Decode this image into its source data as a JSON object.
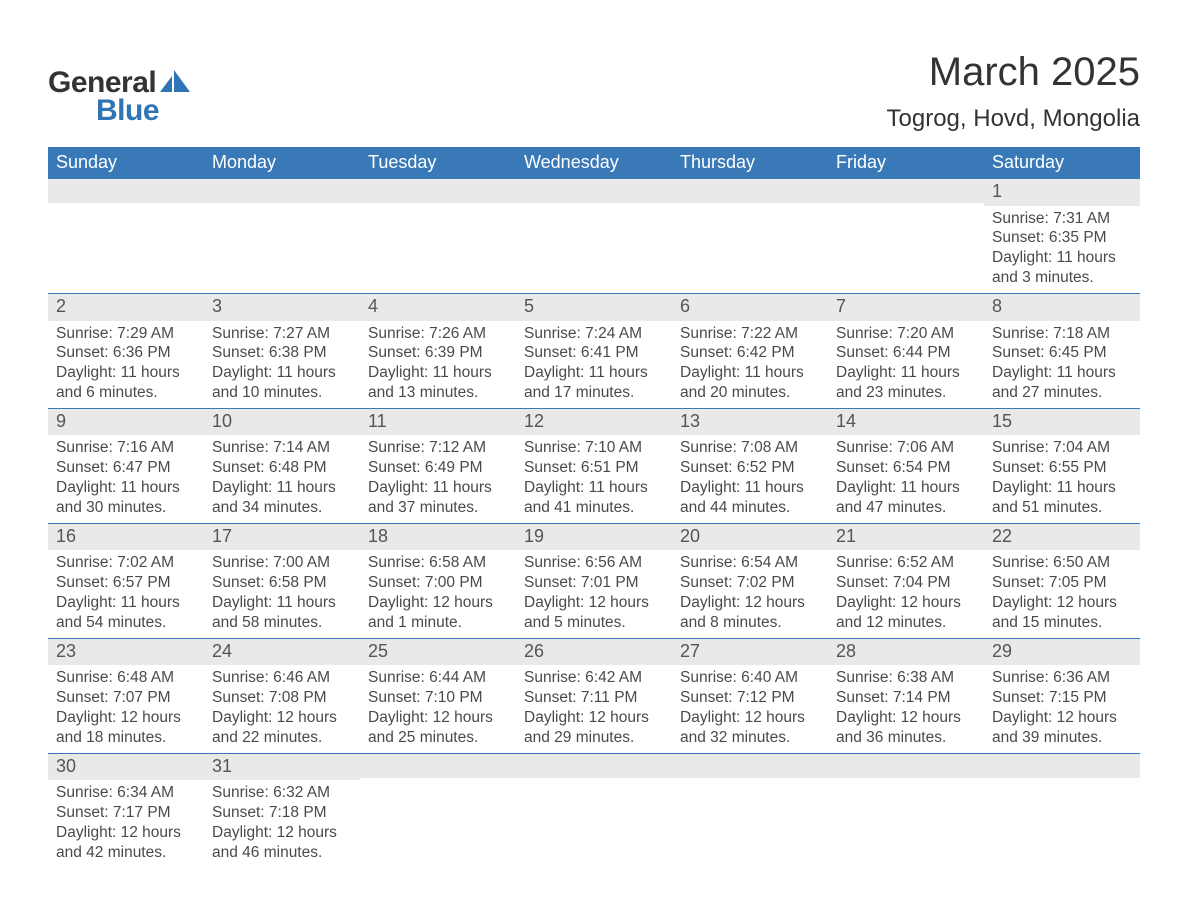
{
  "logo": {
    "text_general": "General",
    "text_blue": "Blue",
    "icon_fill": "#2f74b5"
  },
  "title": {
    "month": "March 2025",
    "location": "Togrog, Hovd, Mongolia"
  },
  "colors": {
    "header_bg": "#3a79b7",
    "header_text": "#ffffff",
    "daynum_bg": "#e9e9e9",
    "daynum_text": "#555555",
    "body_text": "#4a4a4a",
    "row_border": "#3a79b7",
    "page_bg": "#ffffff"
  },
  "typography": {
    "month_title_fontsize": 40,
    "location_fontsize": 24,
    "weekday_fontsize": 18,
    "daynum_fontsize": 18,
    "body_fontsize": 15.5,
    "logo_fontsize": 30,
    "font_family": "Arial"
  },
  "calendar": {
    "type": "table",
    "weekdays": [
      "Sunday",
      "Monday",
      "Tuesday",
      "Wednesday",
      "Thursday",
      "Friday",
      "Saturday"
    ],
    "weeks": [
      [
        {
          "day": "",
          "sunrise": "",
          "sunset": "",
          "daylight": ""
        },
        {
          "day": "",
          "sunrise": "",
          "sunset": "",
          "daylight": ""
        },
        {
          "day": "",
          "sunrise": "",
          "sunset": "",
          "daylight": ""
        },
        {
          "day": "",
          "sunrise": "",
          "sunset": "",
          "daylight": ""
        },
        {
          "day": "",
          "sunrise": "",
          "sunset": "",
          "daylight": ""
        },
        {
          "day": "",
          "sunrise": "",
          "sunset": "",
          "daylight": ""
        },
        {
          "day": "1",
          "sunrise": "Sunrise: 7:31 AM",
          "sunset": "Sunset: 6:35 PM",
          "daylight": "Daylight: 11 hours and 3 minutes."
        }
      ],
      [
        {
          "day": "2",
          "sunrise": "Sunrise: 7:29 AM",
          "sunset": "Sunset: 6:36 PM",
          "daylight": "Daylight: 11 hours and 6 minutes."
        },
        {
          "day": "3",
          "sunrise": "Sunrise: 7:27 AM",
          "sunset": "Sunset: 6:38 PM",
          "daylight": "Daylight: 11 hours and 10 minutes."
        },
        {
          "day": "4",
          "sunrise": "Sunrise: 7:26 AM",
          "sunset": "Sunset: 6:39 PM",
          "daylight": "Daylight: 11 hours and 13 minutes."
        },
        {
          "day": "5",
          "sunrise": "Sunrise: 7:24 AM",
          "sunset": "Sunset: 6:41 PM",
          "daylight": "Daylight: 11 hours and 17 minutes."
        },
        {
          "day": "6",
          "sunrise": "Sunrise: 7:22 AM",
          "sunset": "Sunset: 6:42 PM",
          "daylight": "Daylight: 11 hours and 20 minutes."
        },
        {
          "day": "7",
          "sunrise": "Sunrise: 7:20 AM",
          "sunset": "Sunset: 6:44 PM",
          "daylight": "Daylight: 11 hours and 23 minutes."
        },
        {
          "day": "8",
          "sunrise": "Sunrise: 7:18 AM",
          "sunset": "Sunset: 6:45 PM",
          "daylight": "Daylight: 11 hours and 27 minutes."
        }
      ],
      [
        {
          "day": "9",
          "sunrise": "Sunrise: 7:16 AM",
          "sunset": "Sunset: 6:47 PM",
          "daylight": "Daylight: 11 hours and 30 minutes."
        },
        {
          "day": "10",
          "sunrise": "Sunrise: 7:14 AM",
          "sunset": "Sunset: 6:48 PM",
          "daylight": "Daylight: 11 hours and 34 minutes."
        },
        {
          "day": "11",
          "sunrise": "Sunrise: 7:12 AM",
          "sunset": "Sunset: 6:49 PM",
          "daylight": "Daylight: 11 hours and 37 minutes."
        },
        {
          "day": "12",
          "sunrise": "Sunrise: 7:10 AM",
          "sunset": "Sunset: 6:51 PM",
          "daylight": "Daylight: 11 hours and 41 minutes."
        },
        {
          "day": "13",
          "sunrise": "Sunrise: 7:08 AM",
          "sunset": "Sunset: 6:52 PM",
          "daylight": "Daylight: 11 hours and 44 minutes."
        },
        {
          "day": "14",
          "sunrise": "Sunrise: 7:06 AM",
          "sunset": "Sunset: 6:54 PM",
          "daylight": "Daylight: 11 hours and 47 minutes."
        },
        {
          "day": "15",
          "sunrise": "Sunrise: 7:04 AM",
          "sunset": "Sunset: 6:55 PM",
          "daylight": "Daylight: 11 hours and 51 minutes."
        }
      ],
      [
        {
          "day": "16",
          "sunrise": "Sunrise: 7:02 AM",
          "sunset": "Sunset: 6:57 PM",
          "daylight": "Daylight: 11 hours and 54 minutes."
        },
        {
          "day": "17",
          "sunrise": "Sunrise: 7:00 AM",
          "sunset": "Sunset: 6:58 PM",
          "daylight": "Daylight: 11 hours and 58 minutes."
        },
        {
          "day": "18",
          "sunrise": "Sunrise: 6:58 AM",
          "sunset": "Sunset: 7:00 PM",
          "daylight": "Daylight: 12 hours and 1 minute."
        },
        {
          "day": "19",
          "sunrise": "Sunrise: 6:56 AM",
          "sunset": "Sunset: 7:01 PM",
          "daylight": "Daylight: 12 hours and 5 minutes."
        },
        {
          "day": "20",
          "sunrise": "Sunrise: 6:54 AM",
          "sunset": "Sunset: 7:02 PM",
          "daylight": "Daylight: 12 hours and 8 minutes."
        },
        {
          "day": "21",
          "sunrise": "Sunrise: 6:52 AM",
          "sunset": "Sunset: 7:04 PM",
          "daylight": "Daylight: 12 hours and 12 minutes."
        },
        {
          "day": "22",
          "sunrise": "Sunrise: 6:50 AM",
          "sunset": "Sunset: 7:05 PM",
          "daylight": "Daylight: 12 hours and 15 minutes."
        }
      ],
      [
        {
          "day": "23",
          "sunrise": "Sunrise: 6:48 AM",
          "sunset": "Sunset: 7:07 PM",
          "daylight": "Daylight: 12 hours and 18 minutes."
        },
        {
          "day": "24",
          "sunrise": "Sunrise: 6:46 AM",
          "sunset": "Sunset: 7:08 PM",
          "daylight": "Daylight: 12 hours and 22 minutes."
        },
        {
          "day": "25",
          "sunrise": "Sunrise: 6:44 AM",
          "sunset": "Sunset: 7:10 PM",
          "daylight": "Daylight: 12 hours and 25 minutes."
        },
        {
          "day": "26",
          "sunrise": "Sunrise: 6:42 AM",
          "sunset": "Sunset: 7:11 PM",
          "daylight": "Daylight: 12 hours and 29 minutes."
        },
        {
          "day": "27",
          "sunrise": "Sunrise: 6:40 AM",
          "sunset": "Sunset: 7:12 PM",
          "daylight": "Daylight: 12 hours and 32 minutes."
        },
        {
          "day": "28",
          "sunrise": "Sunrise: 6:38 AM",
          "sunset": "Sunset: 7:14 PM",
          "daylight": "Daylight: 12 hours and 36 minutes."
        },
        {
          "day": "29",
          "sunrise": "Sunrise: 6:36 AM",
          "sunset": "Sunset: 7:15 PM",
          "daylight": "Daylight: 12 hours and 39 minutes."
        }
      ],
      [
        {
          "day": "30",
          "sunrise": "Sunrise: 6:34 AM",
          "sunset": "Sunset: 7:17 PM",
          "daylight": "Daylight: 12 hours and 42 minutes."
        },
        {
          "day": "31",
          "sunrise": "Sunrise: 6:32 AM",
          "sunset": "Sunset: 7:18 PM",
          "daylight": "Daylight: 12 hours and 46 minutes."
        },
        {
          "day": "",
          "sunrise": "",
          "sunset": "",
          "daylight": ""
        },
        {
          "day": "",
          "sunrise": "",
          "sunset": "",
          "daylight": ""
        },
        {
          "day": "",
          "sunrise": "",
          "sunset": "",
          "daylight": ""
        },
        {
          "day": "",
          "sunrise": "",
          "sunset": "",
          "daylight": ""
        },
        {
          "day": "",
          "sunrise": "",
          "sunset": "",
          "daylight": ""
        }
      ]
    ]
  }
}
